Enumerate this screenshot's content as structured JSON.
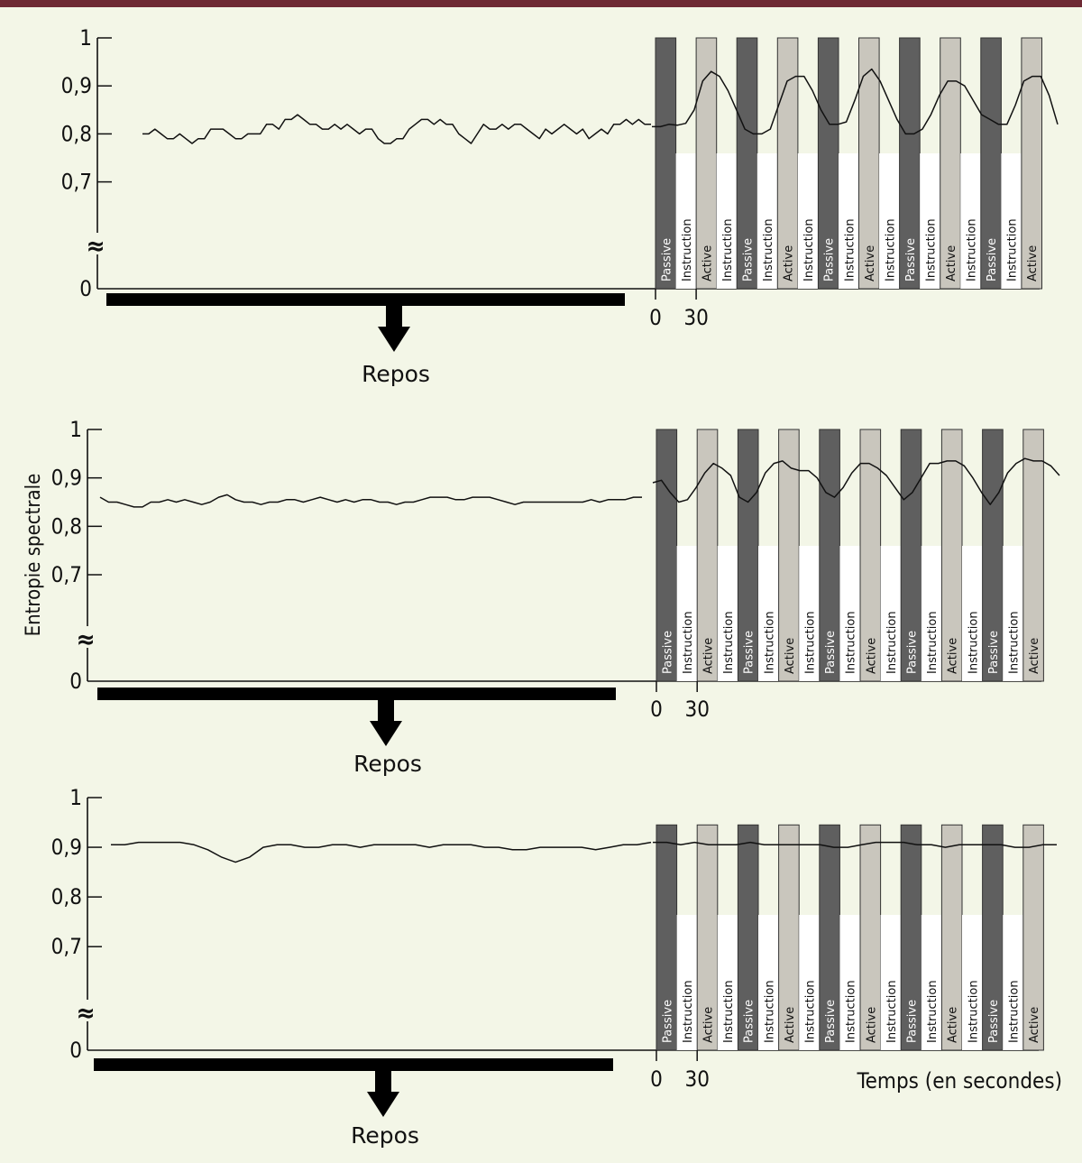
{
  "colors": {
    "background": "#f3f6e7",
    "top_bar": "#6e2a34",
    "passive_block": "#5f5f5f",
    "active_block": "#c9c6bd",
    "instruction_block": "#ffffff",
    "line": "#111111"
  },
  "chart_data": {
    "type": "line",
    "shared_ylabel": "Entropie spectrale",
    "shared_xlabel": "Temps (en secondes)",
    "break_symbol": "≈",
    "x_ticks": [
      "0",
      "30"
    ],
    "rest_label": "Repos",
    "block_labels": [
      "Passive",
      "Instruction",
      "Active",
      "Instruction",
      "Passive",
      "Instruction",
      "Active",
      "Instruction",
      "Passive",
      "Instruction",
      "Active",
      "Instruction",
      "Passive",
      "Instruction",
      "Active",
      "Instruction",
      "Passive",
      "Instruction",
      "Active"
    ],
    "block_types": [
      "passive",
      "instruction",
      "active",
      "instruction",
      "passive",
      "instruction",
      "active",
      "instruction",
      "passive",
      "instruction",
      "active",
      "instruction",
      "passive",
      "instruction",
      "active",
      "instruction",
      "passive",
      "instruction",
      "active"
    ],
    "block_duration_s": 15,
    "panels": [
      {
        "y_ticks": [
          "1",
          "0,9",
          "0,8",
          "0,7",
          "0"
        ],
        "rest_series": [
          0.8,
          0.8,
          0.81,
          0.8,
          0.79,
          0.79,
          0.8,
          0.79,
          0.78,
          0.79,
          0.79,
          0.81,
          0.81,
          0.81,
          0.8,
          0.79,
          0.79,
          0.8,
          0.8,
          0.8,
          0.82,
          0.82,
          0.81,
          0.83,
          0.83,
          0.84,
          0.83,
          0.82,
          0.82,
          0.81,
          0.81,
          0.82,
          0.81,
          0.82,
          0.81,
          0.8,
          0.81,
          0.81,
          0.79,
          0.78,
          0.78,
          0.79,
          0.79,
          0.81,
          0.82,
          0.83,
          0.83,
          0.82,
          0.83,
          0.82,
          0.82,
          0.8,
          0.79,
          0.78,
          0.8,
          0.82,
          0.81,
          0.81,
          0.82,
          0.81,
          0.82,
          0.82,
          0.81,
          0.8,
          0.79,
          0.81,
          0.8,
          0.81,
          0.82,
          0.81,
          0.8,
          0.81,
          0.79,
          0.8,
          0.81,
          0.8,
          0.82,
          0.82,
          0.83,
          0.82,
          0.83,
          0.82,
          0.82
        ],
        "task_series": [
          0.815,
          0.815,
          0.82,
          0.818,
          0.822,
          0.85,
          0.91,
          0.93,
          0.92,
          0.89,
          0.85,
          0.81,
          0.8,
          0.8,
          0.81,
          0.86,
          0.91,
          0.92,
          0.92,
          0.89,
          0.85,
          0.82,
          0.82,
          0.825,
          0.87,
          0.92,
          0.935,
          0.91,
          0.87,
          0.83,
          0.8,
          0.8,
          0.81,
          0.84,
          0.88,
          0.91,
          0.91,
          0.9,
          0.87,
          0.84,
          0.83,
          0.82,
          0.82,
          0.86,
          0.91,
          0.92,
          0.92,
          0.88,
          0.82
        ],
        "block_top": 1
      },
      {
        "y_ticks": [
          "1",
          "0,9",
          "0,8",
          "0,7",
          "0"
        ],
        "rest_series": [
          0.86,
          0.85,
          0.85,
          0.845,
          0.84,
          0.84,
          0.85,
          0.85,
          0.855,
          0.85,
          0.855,
          0.85,
          0.845,
          0.85,
          0.86,
          0.865,
          0.855,
          0.85,
          0.85,
          0.845,
          0.85,
          0.85,
          0.855,
          0.855,
          0.85,
          0.855,
          0.86,
          0.855,
          0.85,
          0.855,
          0.85,
          0.855,
          0.855,
          0.85,
          0.85,
          0.845,
          0.85,
          0.85,
          0.855,
          0.86,
          0.86,
          0.86,
          0.855,
          0.855,
          0.86,
          0.86,
          0.86,
          0.855,
          0.85,
          0.845,
          0.85,
          0.85,
          0.85,
          0.85,
          0.85,
          0.85,
          0.85,
          0.85,
          0.855,
          0.85,
          0.855,
          0.855,
          0.855,
          0.86,
          0.86
        ],
        "task_series": [
          0.89,
          0.895,
          0.87,
          0.85,
          0.855,
          0.88,
          0.91,
          0.93,
          0.92,
          0.905,
          0.86,
          0.85,
          0.87,
          0.91,
          0.93,
          0.935,
          0.92,
          0.915,
          0.915,
          0.9,
          0.87,
          0.86,
          0.88,
          0.91,
          0.93,
          0.93,
          0.92,
          0.905,
          0.88,
          0.855,
          0.87,
          0.9,
          0.93,
          0.93,
          0.935,
          0.935,
          0.925,
          0.9,
          0.87,
          0.845,
          0.87,
          0.91,
          0.93,
          0.94,
          0.935,
          0.935,
          0.925,
          0.905
        ],
        "block_top": 1
      },
      {
        "y_ticks": [
          "1",
          "0,9",
          "0,8",
          "0,7",
          "0"
        ],
        "rest_series": [
          0.905,
          0.905,
          0.91,
          0.91,
          0.91,
          0.91,
          0.905,
          0.895,
          0.88,
          0.87,
          0.88,
          0.9,
          0.905,
          0.905,
          0.9,
          0.9,
          0.905,
          0.905,
          0.9,
          0.905,
          0.905,
          0.905,
          0.905,
          0.9,
          0.905,
          0.905,
          0.905,
          0.9,
          0.9,
          0.895,
          0.895,
          0.9,
          0.9,
          0.9,
          0.9,
          0.895,
          0.9,
          0.905,
          0.905,
          0.91
        ],
        "task_series": [
          0.91,
          0.91,
          0.905,
          0.91,
          0.905,
          0.905,
          0.905,
          0.91,
          0.905,
          0.905,
          0.905,
          0.905,
          0.905,
          0.9,
          0.9,
          0.905,
          0.91,
          0.91,
          0.91,
          0.905,
          0.905,
          0.9,
          0.905,
          0.905,
          0.905,
          0.905,
          0.9,
          0.9,
          0.905,
          0.905
        ],
        "block_top": 0.945
      }
    ]
  }
}
